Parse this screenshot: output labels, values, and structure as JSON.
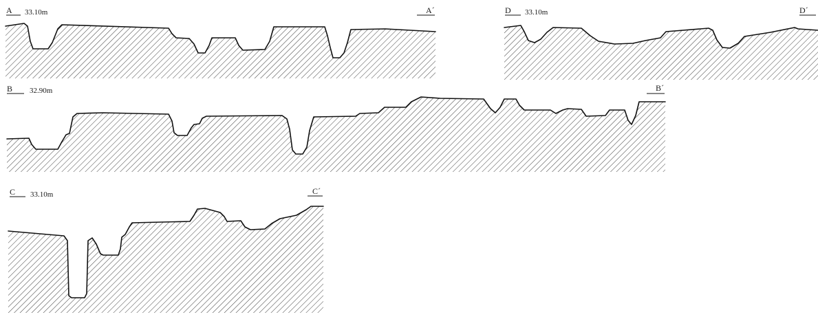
{
  "colors": {
    "ink": "#111111",
    "hatch": "#2a2a2a",
    "background": "#ffffff"
  },
  "sections": [
    {
      "id": "A",
      "start_label": "A",
      "end_label": "A´",
      "elevation": "33.10m"
    },
    {
      "id": "D",
      "start_label": "D",
      "end_label": "D´",
      "elevation": "33.10m"
    },
    {
      "id": "B",
      "start_label": "B",
      "end_label": "B´",
      "elevation": "32.90m"
    },
    {
      "id": "C",
      "start_label": "C",
      "end_label": "C´",
      "elevation": "33.10m"
    }
  ]
}
